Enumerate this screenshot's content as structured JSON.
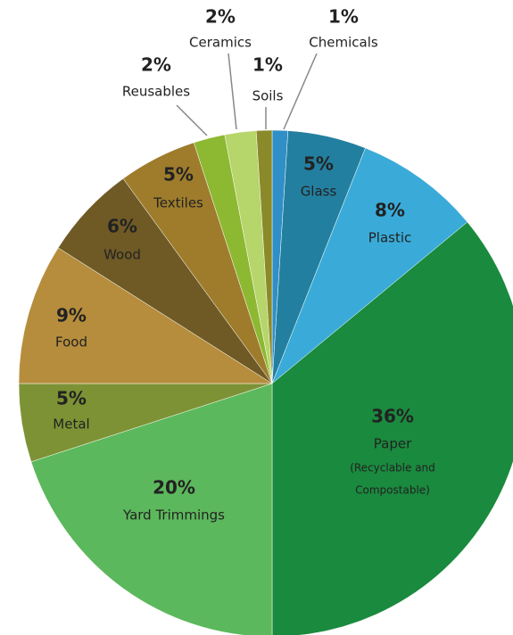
{
  "chart_data": {
    "type": "pie",
    "categories": [
      "Chemicals",
      "Glass",
      "Plastic",
      "Paper",
      "Yard Trimmings",
      "Metal",
      "Food",
      "Wood",
      "Textiles",
      "Reusables",
      "Ceramics",
      "Soils"
    ],
    "values": [
      1,
      5,
      8,
      36,
      20,
      5,
      9,
      6,
      5,
      2,
      2,
      1
    ],
    "value_labels": [
      "1%",
      "5%",
      "8%",
      "36%",
      "20%",
      "5%",
      "9%",
      "6%",
      "5%",
      "2%",
      "2%",
      "1%"
    ],
    "colors": [
      "#2f8fc6",
      "#237f9f",
      "#3aabd8",
      "#1a8a3e",
      "#5cb85c",
      "#7d9234",
      "#b68d3c",
      "#6f5a25",
      "#9e7c2c",
      "#8db832",
      "#b6d56a",
      "#8a8a2a"
    ],
    "paper_note": [
      "(Recyclable and",
      "Compostable)"
    ]
  }
}
